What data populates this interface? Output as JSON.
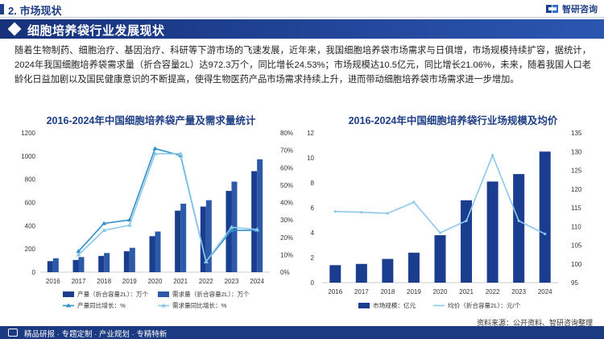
{
  "header": {
    "section_title": "2. 市场现状",
    "brand": "智研咨询"
  },
  "banner": {
    "title": "细胞培养袋行业发展现状"
  },
  "body": {
    "paragraph": "随着生物制药、细胞治疗、基因治疗、科研等下游市场的飞速发展，近年来，我国细胞培养袋市场需求与日俱增，市场规模持续扩容，据统计，2024年我国细胞培养袋需求量（折合容量2L）达972.3万个，同比增长24.53%；市场规模达10.5亿元，同比增长21.06%，未来，随着我国人口老龄化日益加剧以及国民健康意识的不断提高，使得生物医药产品市场需求持续上升，进而带动细胞培养袋市场需求进一步增加。"
  },
  "source": "资料来源：公开资料、智研咨询整理",
  "footer": {
    "text": "精品研报 · 专题定制 · 产业规划 · 专精特新"
  },
  "colors": {
    "primary": "#1f3f86",
    "bar_dark": "#1b3d8f",
    "bar_mid": "#2c5aa8",
    "line_dark": "#2f8fc9",
    "line_light": "#8cc8ea"
  },
  "chart_data": [
    {
      "type": "bar",
      "title": "2016-2024年中国细胞培养袋产量及需求量统计",
      "categories": [
        "2016",
        "2017",
        "2018",
        "2019",
        "2020",
        "2021",
        "2022",
        "2023",
        "2024"
      ],
      "ylim": [
        0,
        1200
      ],
      "yticks": [
        "0",
        "200",
        "400",
        "600",
        "800",
        "1000",
        "1200"
      ],
      "y2lim": [
        0,
        80
      ],
      "y2ticks": [
        "0%",
        "10%",
        "20%",
        "30%",
        "40%",
        "50%",
        "60%",
        "70%",
        "80%"
      ],
      "series": [
        {
          "name": "产量（折合容量2L）：万个",
          "kind": "bar",
          "axis": "left",
          "values": [
            95,
            105,
            140,
            180,
            310,
            530,
            565,
            700,
            870
          ]
        },
        {
          "name": "需求量（折合容量2L）：万个",
          "kind": "bar",
          "axis": "left",
          "values": [
            120,
            130,
            165,
            210,
            350,
            590,
            620,
            780,
            972.3
          ]
        },
        {
          "name": "产量同比增长：%",
          "kind": "line",
          "axis": "right",
          "values": [
            null,
            12,
            28,
            30,
            71,
            67,
            6,
            24,
            24
          ]
        },
        {
          "name": "需求量同比增长：%",
          "kind": "line",
          "axis": "right",
          "values": [
            null,
            10,
            24,
            27,
            68,
            68,
            6,
            25.8,
            24.53
          ]
        }
      ]
    },
    {
      "type": "bar",
      "title": "2016-2024年中国细胞培养袋行业场规模及均价",
      "categories": [
        "2016",
        "2017",
        "2018",
        "2019",
        "2020",
        "2021",
        "2022",
        "2023",
        "2024"
      ],
      "ylim": [
        0,
        12
      ],
      "yticks": [
        "0",
        "2",
        "4",
        "6",
        "8",
        "10",
        "12"
      ],
      "y2lim": [
        95,
        135
      ],
      "y2ticks": [
        "95",
        "100",
        "105",
        "110",
        "115",
        "120",
        "125",
        "130",
        "135"
      ],
      "series": [
        {
          "name": "市场规模：亿元",
          "kind": "bar",
          "axis": "left",
          "values": [
            1.4,
            1.5,
            1.9,
            2.4,
            3.8,
            6.6,
            8.1,
            8.7,
            10.5
          ]
        },
        {
          "name": "均价（折合容量2L）：元/个",
          "kind": "line",
          "axis": "right",
          "values": [
            114,
            113.8,
            113.5,
            116.5,
            108.3,
            111.5,
            129,
            111.5,
            108
          ]
        }
      ]
    }
  ]
}
